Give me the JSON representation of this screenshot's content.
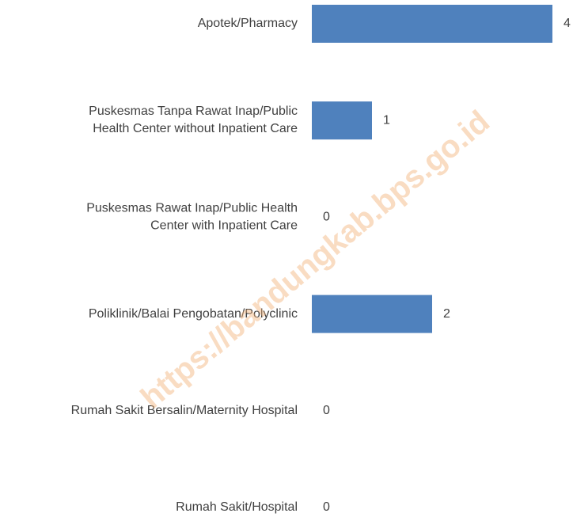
{
  "chart_data": {
    "type": "bar",
    "orientation": "horizontal",
    "categories": [
      "Apotek/Pharmacy",
      "Puskesmas Tanpa Rawat Inap/Public\nHealth Center without Inpatient Care",
      "Puskesmas Rawat Inap/Public Health\nCenter with Inpatient Care",
      "Poliklinik/Balai Pengobatan/Polyclinic",
      "Rumah Sakit Bersalin/Maternity Hospital",
      "Rumah Sakit/Hospital"
    ],
    "values": [
      4,
      1,
      0,
      2,
      0,
      0
    ],
    "color": "#4f81bd",
    "xlim": [
      0,
      4
    ],
    "watermark": "https://bandungkab.bps.go.id"
  }
}
